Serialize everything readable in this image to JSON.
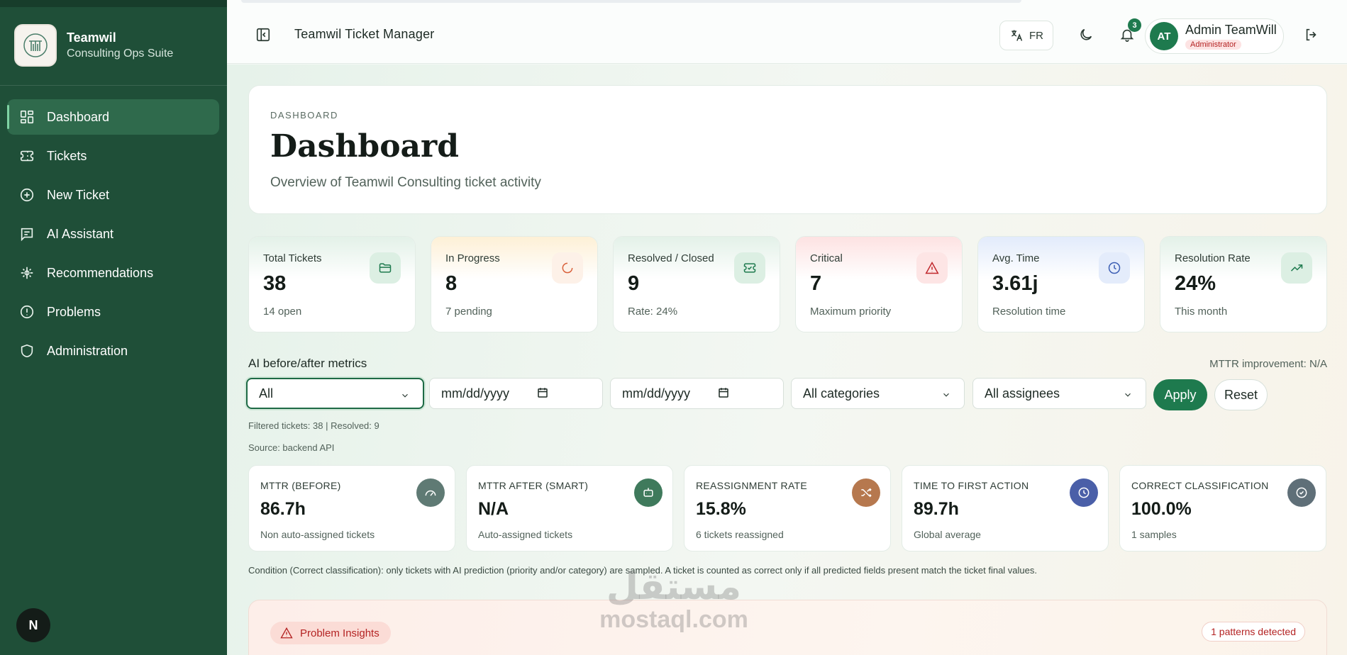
{
  "brand": {
    "name": "Teamwil",
    "subtitle": "Consulting Ops Suite"
  },
  "sidebar": {
    "items": [
      {
        "label": "Dashboard",
        "icon": "dashboard-grid-icon",
        "active": true
      },
      {
        "label": "Tickets",
        "icon": "ticket-icon"
      },
      {
        "label": "New Ticket",
        "icon": "plus-circle-icon"
      },
      {
        "label": "AI Assistant",
        "icon": "chat-icon"
      },
      {
        "label": "Recommendations",
        "icon": "recommendations-icon"
      },
      {
        "label": "Problems",
        "icon": "alert-circle-icon"
      },
      {
        "label": "Administration",
        "icon": "shield-icon"
      }
    ],
    "bottom_avatar": "N"
  },
  "header": {
    "title": "Teamwil Ticket Manager",
    "language": "FR",
    "notifications_count": "3",
    "user": {
      "initials": "AT",
      "name": "Admin TeamWill",
      "role": "Administrator"
    }
  },
  "hero": {
    "eyebrow": "DASHBOARD",
    "title": "Dashboard",
    "subtitle": "Overview of Teamwil Consulting ticket activity"
  },
  "stats": [
    {
      "label": "Total Tickets",
      "value": "38",
      "sub": "14 open",
      "icon": "folder-icon",
      "tint": "#e3f1e8",
      "icon_bg": "#e3f1e8",
      "icon_color": "#1e7a4e"
    },
    {
      "label": "In Progress",
      "value": "8",
      "sub": "7 pending",
      "icon": "spinner-icon",
      "tint": "#fdf3dc",
      "icon_bg": "#fdefe4",
      "icon_color": "#d9603a"
    },
    {
      "label": "Resolved / Closed",
      "value": "9",
      "sub": "Rate: 24%",
      "icon": "ticket-check-icon",
      "tint": "#e3f1e8",
      "icon_bg": "#e3f1e8",
      "icon_color": "#1e7a4e"
    },
    {
      "label": "Critical",
      "value": "7",
      "sub": "Maximum priority",
      "icon": "warning-triangle-icon",
      "tint": "#fde5e5",
      "icon_bg": "#fde5e5",
      "icon_color": "#c0282d"
    },
    {
      "label": "Avg. Time",
      "value": "3.61j",
      "sub": "Resolution time",
      "icon": "clock-icon",
      "tint": "#e4ecfb",
      "icon_bg": "#e4ecfb",
      "icon_color": "#3d5fb4"
    },
    {
      "label": "Resolution Rate",
      "value": "24%",
      "sub": "This month",
      "icon": "trending-up-icon",
      "tint": "#e3f1e8",
      "icon_bg": "#e3f1e8",
      "icon_color": "#1e7a4e"
    }
  ],
  "ai_metrics": {
    "title": "AI before/after metrics",
    "mttr_improvement": "MTTR improvement: N/A",
    "filters": {
      "scope": "All",
      "date_from_placeholder": "mm/dd/yyyy",
      "date_to_placeholder": "mm/dd/yyyy",
      "category": "All categories",
      "assignee": "All assignees",
      "apply_label": "Apply",
      "reset_label": "Reset"
    },
    "filtered_summary": "Filtered tickets: 38 | Resolved: 9",
    "source": "Source: backend API",
    "cards": [
      {
        "label": "MTTR (BEFORE)",
        "value": "86.7h",
        "sub": "Non auto-assigned tickets",
        "icon": "speedometer-icon",
        "icon_bg": "#5f7a74"
      },
      {
        "label": "MTTR AFTER (SMART)",
        "value": "N/A",
        "sub": "Auto-assigned tickets",
        "icon": "robot-icon",
        "icon_bg": "#3f7a5c"
      },
      {
        "label": "REASSIGNMENT RATE",
        "value": "15.8%",
        "sub": "6 tickets reassigned",
        "icon": "shuffle-icon",
        "icon_bg": "#b6784e"
      },
      {
        "label": "TIME TO FIRST ACTION",
        "value": "89.7h",
        "sub": "Global average",
        "icon": "clock-icon",
        "icon_bg": "#4a5fa8"
      },
      {
        "label": "CORRECT CLASSIFICATION",
        "value": "100.0%",
        "sub": "1 samples",
        "icon": "check-circle-icon",
        "icon_bg": "#5f6f78"
      }
    ],
    "condition_note": "Condition (Correct classification): only tickets with AI prediction (priority and/or category) are sampled. A ticket is counted as correct only if all predicted fields present match the ticket final values."
  },
  "insights": {
    "label": "Problem Insights",
    "patterns": "1 patterns detected"
  },
  "watermark": {
    "arabic": "مستقل",
    "latin": "mostaql.com"
  }
}
